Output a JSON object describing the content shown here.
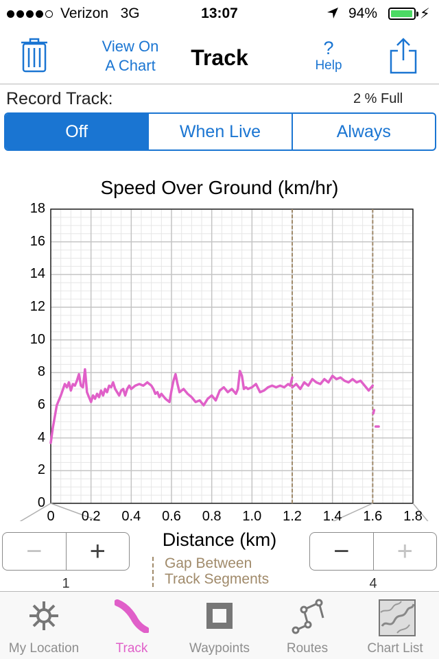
{
  "status_bar": {
    "carrier": "Verizon",
    "network": "3G",
    "time": "13:07",
    "battery": "94%",
    "battery_level": 0.94,
    "signal_bars": 4
  },
  "nav": {
    "view_chart_line1": "View On",
    "view_chart_line2": "A Chart",
    "title": "Track",
    "help_q": "?",
    "help_label": "Help",
    "trash_icon": "trash-icon",
    "share_icon": "share-icon"
  },
  "record": {
    "label": "Record Track:",
    "full": "2 % Full",
    "options": [
      "Off",
      "When Live",
      "Always"
    ],
    "selected": "Off"
  },
  "chart_data": {
    "type": "line",
    "title": "Speed Over Ground (km/hr)",
    "xlabel": "Distance (km)",
    "xlim": [
      0,
      1.8
    ],
    "ylim": [
      0,
      18
    ],
    "x_ticks": [
      "0",
      "0.2",
      "0.4",
      "0.6",
      "0.8",
      "1.0",
      "1.2",
      "1.4",
      "1.6",
      "1.8"
    ],
    "y_ticks": [
      "0",
      "2",
      "4",
      "6",
      "8",
      "10",
      "12",
      "14",
      "16",
      "18"
    ],
    "grid": true,
    "gaps": [
      1.2,
      1.6
    ],
    "legend": "Gap Between Track Segments",
    "color": "#e060c8",
    "gap_color": "#a08a6a",
    "series": [
      {
        "x": [
          0.0,
          0.01,
          0.03,
          0.05,
          0.07,
          0.08,
          0.09,
          0.1,
          0.11,
          0.12,
          0.13,
          0.14,
          0.15,
          0.16,
          0.17,
          0.18,
          0.19,
          0.2,
          0.21,
          0.22,
          0.23,
          0.24,
          0.25,
          0.26,
          0.27,
          0.28,
          0.29,
          0.3,
          0.31,
          0.32,
          0.33,
          0.34,
          0.35,
          0.36,
          0.37,
          0.38,
          0.39,
          0.4,
          0.42,
          0.44,
          0.46,
          0.48,
          0.5,
          0.51,
          0.52,
          0.53,
          0.54,
          0.55,
          0.57,
          0.59,
          0.6,
          0.61,
          0.62,
          0.63,
          0.64,
          0.65,
          0.66,
          0.68,
          0.7,
          0.72,
          0.74,
          0.76,
          0.77,
          0.78,
          0.8,
          0.82,
          0.84,
          0.86,
          0.88,
          0.9,
          0.92,
          0.93,
          0.94,
          0.95,
          0.96,
          0.97,
          0.98,
          1.0,
          1.02,
          1.04,
          1.06,
          1.08,
          1.1,
          1.12,
          1.14,
          1.16,
          1.18,
          1.19,
          1.2
        ],
        "y": [
          3.7,
          4.6,
          6.0,
          6.6,
          7.3,
          7.1,
          7.4,
          6.9,
          7.3,
          7.2,
          7.5,
          7.9,
          7.2,
          7.1,
          8.2,
          6.8,
          6.5,
          6.2,
          6.6,
          6.4,
          6.7,
          6.5,
          6.9,
          6.6,
          7.0,
          6.8,
          7.2,
          7.1,
          7.4,
          7.0,
          6.8,
          6.6,
          6.9,
          7.0,
          6.6,
          7.0,
          7.2,
          7.0,
          7.2,
          7.3,
          7.2,
          7.4,
          7.2,
          7.0,
          6.7,
          6.8,
          6.5,
          6.7,
          6.4,
          6.2,
          6.9,
          7.5,
          7.9,
          7.3,
          6.8,
          6.9,
          7.0,
          6.7,
          6.5,
          6.2,
          6.3,
          6.0,
          6.2,
          6.4,
          6.6,
          6.3,
          6.9,
          7.1,
          6.8,
          7.0,
          6.7,
          7.0,
          8.1,
          7.8,
          7.0,
          7.1,
          7.0,
          7.1,
          7.3,
          6.8,
          6.9,
          7.1,
          7.2,
          7.1,
          7.2,
          7.1,
          7.3,
          7.2,
          7.7
        ]
      },
      {
        "x": [
          1.2,
          1.22,
          1.24,
          1.26,
          1.28,
          1.3,
          1.32,
          1.34,
          1.36,
          1.38,
          1.4,
          1.42,
          1.44,
          1.46,
          1.48,
          1.5,
          1.52,
          1.54,
          1.56,
          1.58,
          1.6
        ],
        "y": [
          7.1,
          7.3,
          7.0,
          7.4,
          7.2,
          7.6,
          7.4,
          7.3,
          7.6,
          7.4,
          7.8,
          7.6,
          7.7,
          7.5,
          7.4,
          7.6,
          7.4,
          7.5,
          7.2,
          6.9,
          7.2
        ]
      },
      {
        "x": [
          1.603,
          1.607
        ],
        "y": [
          5.5,
          5.7
        ]
      },
      {
        "x": [
          1.615,
          1.63
        ],
        "y": [
          4.7,
          4.7
        ]
      }
    ]
  },
  "steppers": {
    "left": {
      "minus": "−",
      "plus": "+",
      "value": "1"
    },
    "right": {
      "minus": "−",
      "plus": "+",
      "value": "4"
    }
  },
  "tabs": [
    {
      "label": "My Location",
      "icon": "my-location-icon",
      "active": false
    },
    {
      "label": "Track",
      "icon": "track-icon",
      "active": true
    },
    {
      "label": "Waypoints",
      "icon": "waypoints-icon",
      "active": false
    },
    {
      "label": "Routes",
      "icon": "routes-icon",
      "active": false
    },
    {
      "label": "Chart List",
      "icon": "chart-list-icon",
      "active": false
    }
  ]
}
